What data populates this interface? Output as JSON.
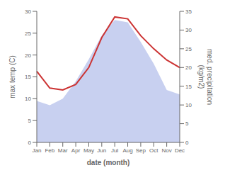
{
  "chart_data": {
    "type": "area",
    "categories": [
      "Jan",
      "Feb",
      "Mar",
      "Apr",
      "May",
      "Jun",
      "Jul",
      "Aug",
      "Sep",
      "Oct",
      "Nov",
      "Dec"
    ],
    "series": [
      {
        "type": "area",
        "color": "#c8d0f0",
        "values": [
          9.5,
          8.5,
          10.0,
          14.0,
          19.0,
          24.5,
          28.0,
          27.5,
          23.0,
          18.0,
          12.0,
          11.0
        ]
      },
      {
        "type": "line",
        "color": "#cc3333",
        "axis": "y2",
        "values": [
          19.0,
          14.5,
          14.0,
          15.5,
          20.0,
          28.0,
          33.5,
          33.0,
          28.5,
          25.0,
          22.0,
          20.0
        ]
      }
    ],
    "xlabel": "date (month)",
    "ylabel": "max temp (C)",
    "y2label": "med. precipitation\n(kg/m2)",
    "ylim": [
      0,
      30
    ],
    "yticks": [
      0,
      5,
      10,
      15,
      20,
      25,
      30
    ],
    "y2lim": [
      0,
      35
    ],
    "y2ticks": [
      0,
      5,
      10,
      15,
      20,
      25,
      30,
      35
    ],
    "grid": false
  }
}
